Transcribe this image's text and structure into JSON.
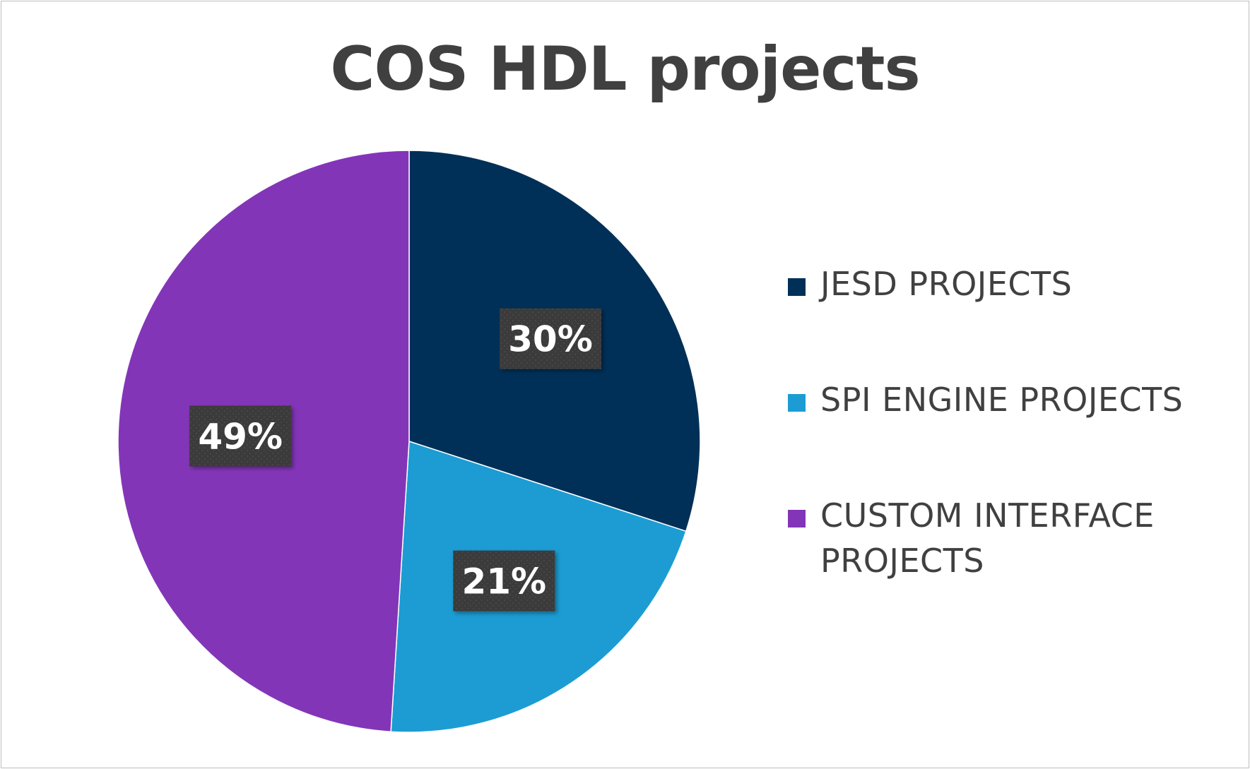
{
  "chart_data": {
    "type": "pie",
    "title": "COS HDL projects",
    "categories": [
      "JESD PROJECTS",
      "SPI ENGINE PROJECTS",
      "CUSTOM INTERFACE PROJECTS"
    ],
    "values": [
      30,
      21,
      49
    ],
    "data_labels": [
      "30%",
      "21%",
      "49%"
    ],
    "colors": [
      "#003057",
      "#1c9cd3",
      "#8335b8"
    ],
    "start_angle_deg": 0,
    "direction": "clockwise",
    "legend_position": "right",
    "data_label_style": "dark boxed labels with white text"
  }
}
